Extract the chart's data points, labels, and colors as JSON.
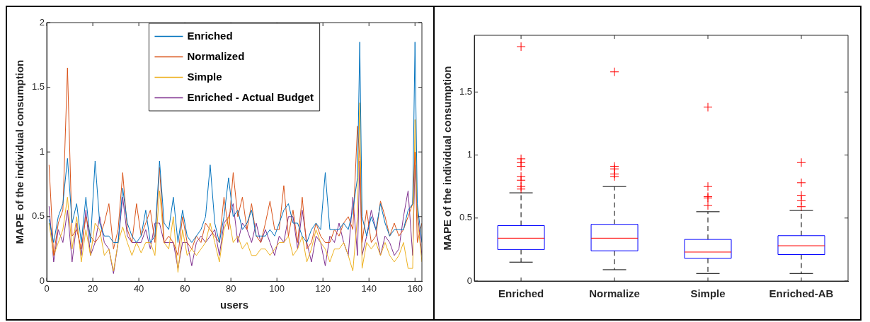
{
  "chart_data": [
    {
      "type": "line",
      "xlabel": "users",
      "ylabel": "MAPE of the individual consumption",
      "xlim": [
        0,
        163
      ],
      "ylim": [
        0,
        2
      ],
      "xticks": [
        0,
        20,
        40,
        60,
        80,
        100,
        120,
        140,
        160
      ],
      "yticks": [
        0,
        0.5,
        1,
        1.5,
        2
      ],
      "legend": "top",
      "grid": false,
      "x": [
        1,
        3,
        5,
        7,
        9,
        11,
        13,
        15,
        17,
        19,
        21,
        23,
        25,
        27,
        29,
        31,
        33,
        35,
        37,
        39,
        41,
        43,
        45,
        47,
        49,
        51,
        53,
        55,
        57,
        59,
        61,
        63,
        65,
        67,
        69,
        71,
        73,
        75,
        77,
        79,
        81,
        83,
        85,
        87,
        89,
        91,
        93,
        95,
        97,
        99,
        101,
        103,
        105,
        107,
        109,
        111,
        113,
        115,
        117,
        119,
        121,
        123,
        125,
        127,
        129,
        131,
        133,
        135,
        136,
        137,
        139,
        141,
        143,
        145,
        147,
        149,
        151,
        153,
        155,
        157,
        159,
        160,
        161,
        163
      ],
      "series": [
        {
          "name": "Enriched",
          "color": "#0072bd",
          "values": [
            0.48,
            0.3,
            0.5,
            0.6,
            0.95,
            0.45,
            0.6,
            0.3,
            0.65,
            0.3,
            0.93,
            0.45,
            0.35,
            0.35,
            0.3,
            0.3,
            0.72,
            0.45,
            0.35,
            0.3,
            0.35,
            0.55,
            0.3,
            0.35,
            0.93,
            0.45,
            0.4,
            0.65,
            0.3,
            0.55,
            0.35,
            0.3,
            0.35,
            0.4,
            0.5,
            0.9,
            0.45,
            0.3,
            0.5,
            0.8,
            0.5,
            0.55,
            0.4,
            0.45,
            0.55,
            0.35,
            0.35,
            0.35,
            0.4,
            0.35,
            0.45,
            0.55,
            0.6,
            0.45,
            0.45,
            0.35,
            0.3,
            0.4,
            0.45,
            0.4,
            0.84,
            0.4,
            0.4,
            0.4,
            0.45,
            0.4,
            0.55,
            0.8,
            1.85,
            0.5,
            0.35,
            0.5,
            0.4,
            0.6,
            0.45,
            0.35,
            0.4,
            0.4,
            0.4,
            0.55,
            0.6,
            1.85,
            0.6,
            0.3
          ]
        },
        {
          "name": "Normalized",
          "color": "#d95319",
          "values": [
            0.9,
            0.2,
            0.45,
            0.55,
            1.65,
            0.35,
            0.4,
            0.25,
            0.5,
            0.35,
            0.3,
            0.35,
            0.45,
            0.6,
            0.25,
            0.4,
            0.84,
            0.4,
            0.3,
            0.6,
            0.35,
            0.45,
            0.55,
            0.3,
            0.88,
            0.3,
            0.35,
            0.3,
            0.2,
            0.5,
            0.3,
            0.25,
            0.35,
            0.3,
            0.45,
            0.4,
            0.35,
            0.3,
            0.65,
            0.4,
            0.84,
            0.5,
            0.65,
            0.4,
            0.6,
            0.35,
            0.3,
            0.45,
            0.62,
            0.4,
            0.4,
            0.74,
            0.35,
            0.55,
            0.3,
            0.65,
            0.25,
            0.3,
            0.45,
            0.35,
            0.3,
            0.3,
            0.4,
            0.35,
            0.45,
            0.5,
            0.4,
            1.2,
            0.95,
            0.3,
            0.55,
            0.3,
            0.35,
            0.62,
            0.5,
            0.35,
            0.45,
            0.35,
            0.4,
            0.5,
            0.6,
            1.0,
            0.3,
            0.45
          ]
        },
        {
          "name": "Simple",
          "color": "#edb120",
          "values": [
            0.45,
            0.2,
            0.3,
            0.4,
            0.65,
            0.25,
            0.5,
            0.15,
            0.4,
            0.2,
            0.45,
            0.4,
            0.2,
            0.25,
            0.08,
            0.3,
            0.42,
            0.3,
            0.2,
            0.3,
            0.22,
            0.3,
            0.3,
            0.2,
            0.7,
            0.3,
            0.25,
            0.5,
            0.07,
            0.4,
            0.2,
            0.25,
            0.2,
            0.25,
            0.3,
            0.45,
            0.3,
            0.15,
            0.4,
            0.5,
            0.3,
            0.35,
            0.25,
            0.3,
            0.2,
            0.2,
            0.25,
            0.25,
            0.2,
            0.25,
            0.3,
            0.3,
            0.35,
            0.2,
            0.25,
            0.35,
            0.15,
            0.25,
            0.4,
            0.3,
            0.25,
            0.15,
            0.25,
            0.25,
            0.3,
            0.2,
            0.08,
            0.5,
            1.38,
            0.1,
            0.3,
            0.25,
            0.3,
            0.2,
            0.3,
            0.2,
            0.15,
            0.2,
            0.3,
            0.1,
            0.1,
            1.25,
            0.5,
            0.15
          ]
        },
        {
          "name": "Enriched - Actual Budget",
          "color": "#7e2f8e",
          "values": [
            0.58,
            0.15,
            0.4,
            0.3,
            0.55,
            0.15,
            0.45,
            0.2,
            0.55,
            0.2,
            0.3,
            0.5,
            0.3,
            0.25,
            0.06,
            0.3,
            0.65,
            0.35,
            0.3,
            0.3,
            0.3,
            0.4,
            0.25,
            0.45,
            0.45,
            0.3,
            0.3,
            0.3,
            0.1,
            0.3,
            0.3,
            0.12,
            0.3,
            0.35,
            0.3,
            0.35,
            0.4,
            0.2,
            0.45,
            0.5,
            0.6,
            0.3,
            0.45,
            0.4,
            0.3,
            0.45,
            0.3,
            0.4,
            0.3,
            0.2,
            0.35,
            0.3,
            0.5,
            0.5,
            0.25,
            0.55,
            0.3,
            0.15,
            0.35,
            0.3,
            0.12,
            0.35,
            0.3,
            0.45,
            0.3,
            0.2,
            0.65,
            0.2,
            0.93,
            0.2,
            0.35,
            0.55,
            0.4,
            0.2,
            0.35,
            0.3,
            0.2,
            0.25,
            0.5,
            0.7,
            0.2,
            0.9,
            0.55,
            0.2
          ]
        }
      ]
    },
    {
      "type": "box",
      "ylabel": "MAPE of the individual consumption",
      "categories": [
        "Enriched",
        "Normalize",
        "Simple",
        "Enriched-AB"
      ],
      "ylim": [
        0,
        1.95
      ],
      "yticks": [
        0,
        0.5,
        1,
        1.5
      ],
      "grid": false,
      "series": [
        {
          "color": "#0000ff",
          "boxes": [
            {
              "low": 0.15,
              "q1": 0.25,
              "median": 0.34,
              "q3": 0.44,
              "high": 0.7,
              "outliers": [
                1.86,
                0.97,
                0.94,
                0.91,
                0.83,
                0.8,
                0.75,
                0.73
              ]
            },
            {
              "low": 0.09,
              "q1": 0.24,
              "median": 0.34,
              "q3": 0.45,
              "high": 0.75,
              "outliers": [
                1.66,
                0.91,
                0.89,
                0.85,
                0.83
              ]
            },
            {
              "low": 0.06,
              "q1": 0.18,
              "median": 0.23,
              "q3": 0.33,
              "high": 0.55,
              "outliers": [
                1.38,
                0.75,
                0.67,
                0.66,
                0.6
              ]
            },
            {
              "low": 0.06,
              "q1": 0.21,
              "median": 0.28,
              "q3": 0.36,
              "high": 0.56,
              "outliers": [
                0.94,
                0.78,
                0.68,
                0.64,
                0.59
              ]
            }
          ]
        }
      ]
    }
  ]
}
